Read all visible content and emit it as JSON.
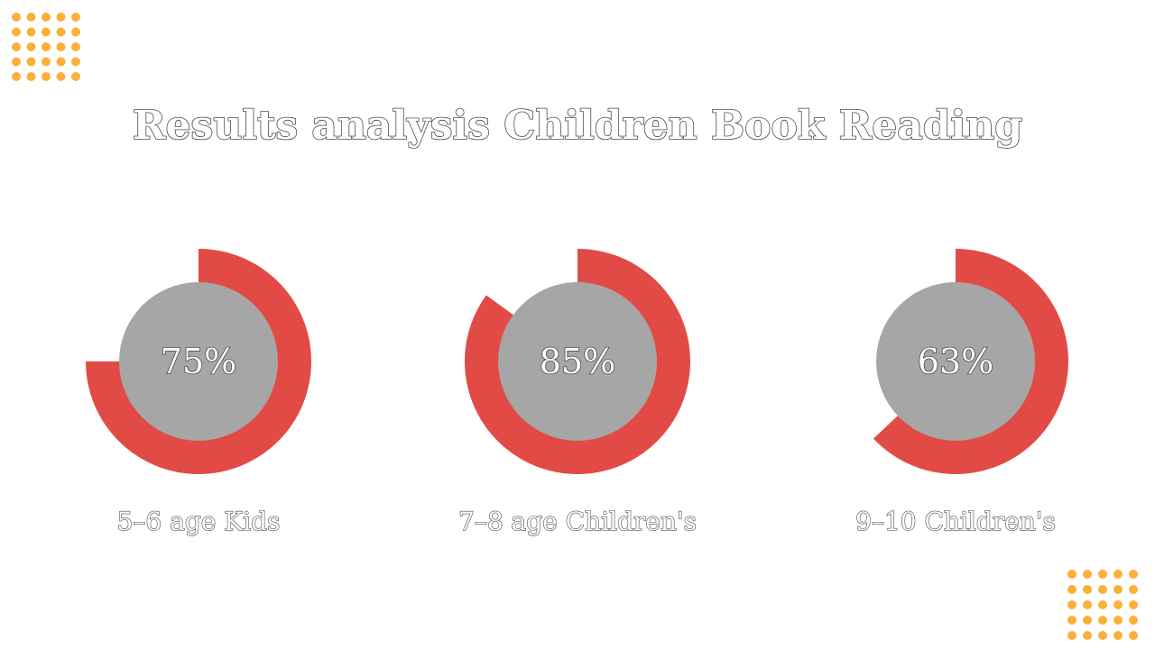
{
  "title": "Results analysis Children Book Reading",
  "colors": {
    "arc": "#e24b45",
    "inner": "#a6a6a6",
    "dots": "#fbb03b",
    "text_fill": "#ffffff",
    "text_stroke": "#4a4a4a"
  },
  "chart_data": [
    {
      "type": "pie",
      "label": "5–6 age Kids",
      "value": 75,
      "value_label": "75%",
      "max": 100
    },
    {
      "type": "pie",
      "label": "7–8 age Children's",
      "value": 85,
      "value_label": "85%",
      "max": 100
    },
    {
      "type": "pie",
      "label": "9–10 Children's",
      "value": 63,
      "value_label": "63%",
      "max": 100
    }
  ]
}
